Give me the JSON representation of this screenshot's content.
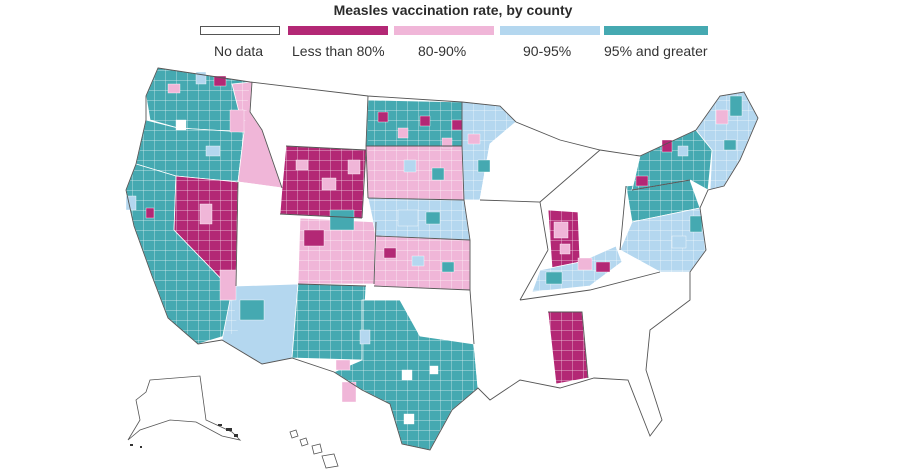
{
  "title": "Measles vaccination rate, by county",
  "legend": [
    {
      "label": "No data",
      "color": "#ffffff"
    },
    {
      "label": "Less than 80%",
      "color": "#b32875"
    },
    {
      "label": "80-90%",
      "color": "#f0b6d8"
    },
    {
      "label": "90-95%",
      "color": "#b4d7ef"
    },
    {
      "label": "95% and greater",
      "color": "#45a9b1"
    }
  ],
  "colors": {
    "no_data": "#ffffff",
    "lt80": "#b32875",
    "r80_90": "#f0b6d8",
    "r90_95": "#b4d7ef",
    "gte95": "#45a9b1",
    "border": "#ffffff",
    "outline": "#444444"
  }
}
